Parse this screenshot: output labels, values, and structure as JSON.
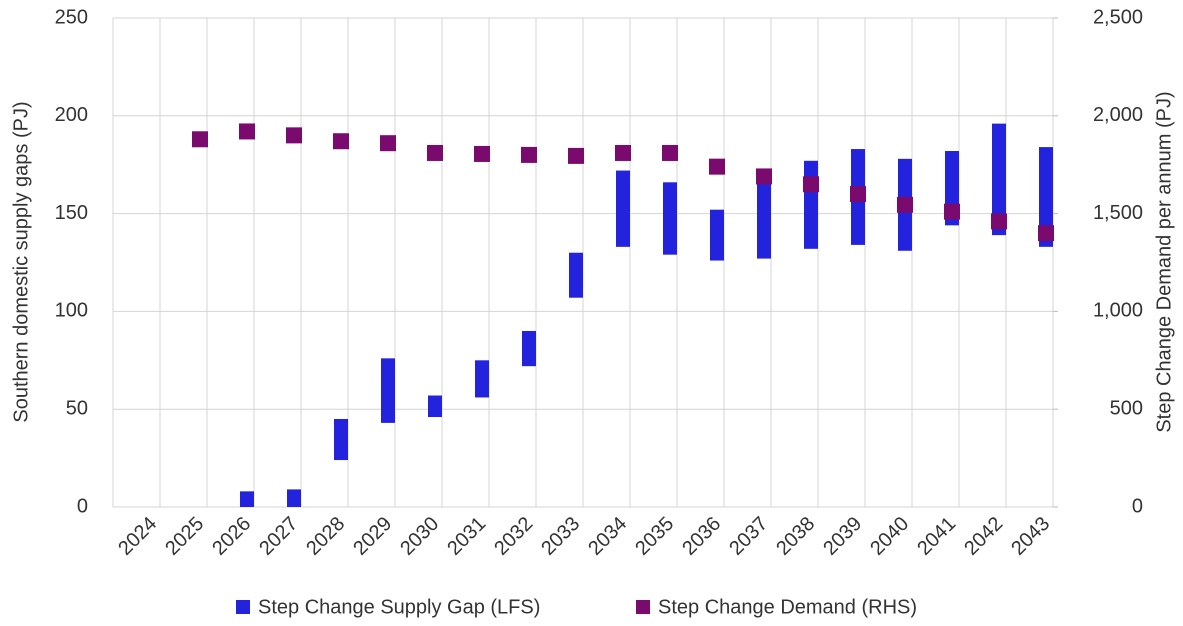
{
  "chart_data": {
    "type": "combo",
    "categories": [
      "2024",
      "2025",
      "2026",
      "2027",
      "2028",
      "2029",
      "2030",
      "2031",
      "2032",
      "2033",
      "2034",
      "2035",
      "2036",
      "2037",
      "2038",
      "2039",
      "2040",
      "2041",
      "2042",
      "2043"
    ],
    "y_label": "Southern domestic supply gaps (PJ)",
    "y2_label": "Step Change Demand per annum (PJ)",
    "ylim": [
      0,
      250
    ],
    "yticks": [
      0,
      50,
      100,
      150,
      200,
      250
    ],
    "y2lim": [
      0,
      2500
    ],
    "y2ticks": [
      0,
      500,
      {
        "value": 1000,
        "label": "1,000"
      },
      {
        "value": 1500,
        "label": "1,500"
      },
      {
        "value": 2000,
        "label": "2,000"
      },
      {
        "value": 2500,
        "label": "2,500"
      }
    ],
    "grid": true,
    "series": [
      {
        "name": "Step Change Supply Gap (LFS)",
        "type": "range",
        "color": "#2323dd",
        "low": [
          null,
          null,
          0,
          0,
          24,
          43,
          46,
          56,
          72,
          107,
          133,
          129,
          126,
          127,
          132,
          134,
          131,
          144,
          139,
          133
        ],
        "high": [
          null,
          null,
          8,
          9,
          45,
          76,
          57,
          75,
          90,
          130,
          172,
          166,
          152,
          173,
          177,
          183,
          178,
          182,
          196,
          184
        ]
      },
      {
        "name": "Step Change Demand (RHS)",
        "type": "marker",
        "axis": "y2",
        "color": "#7b0a6e",
        "values": [
          null,
          1880,
          1920,
          1900,
          1870,
          1860,
          1810,
          1805,
          1800,
          1795,
          1810,
          1810,
          1740,
          1690,
          1650,
          1600,
          1545,
          1510,
          1460,
          1400
        ]
      }
    ]
  }
}
